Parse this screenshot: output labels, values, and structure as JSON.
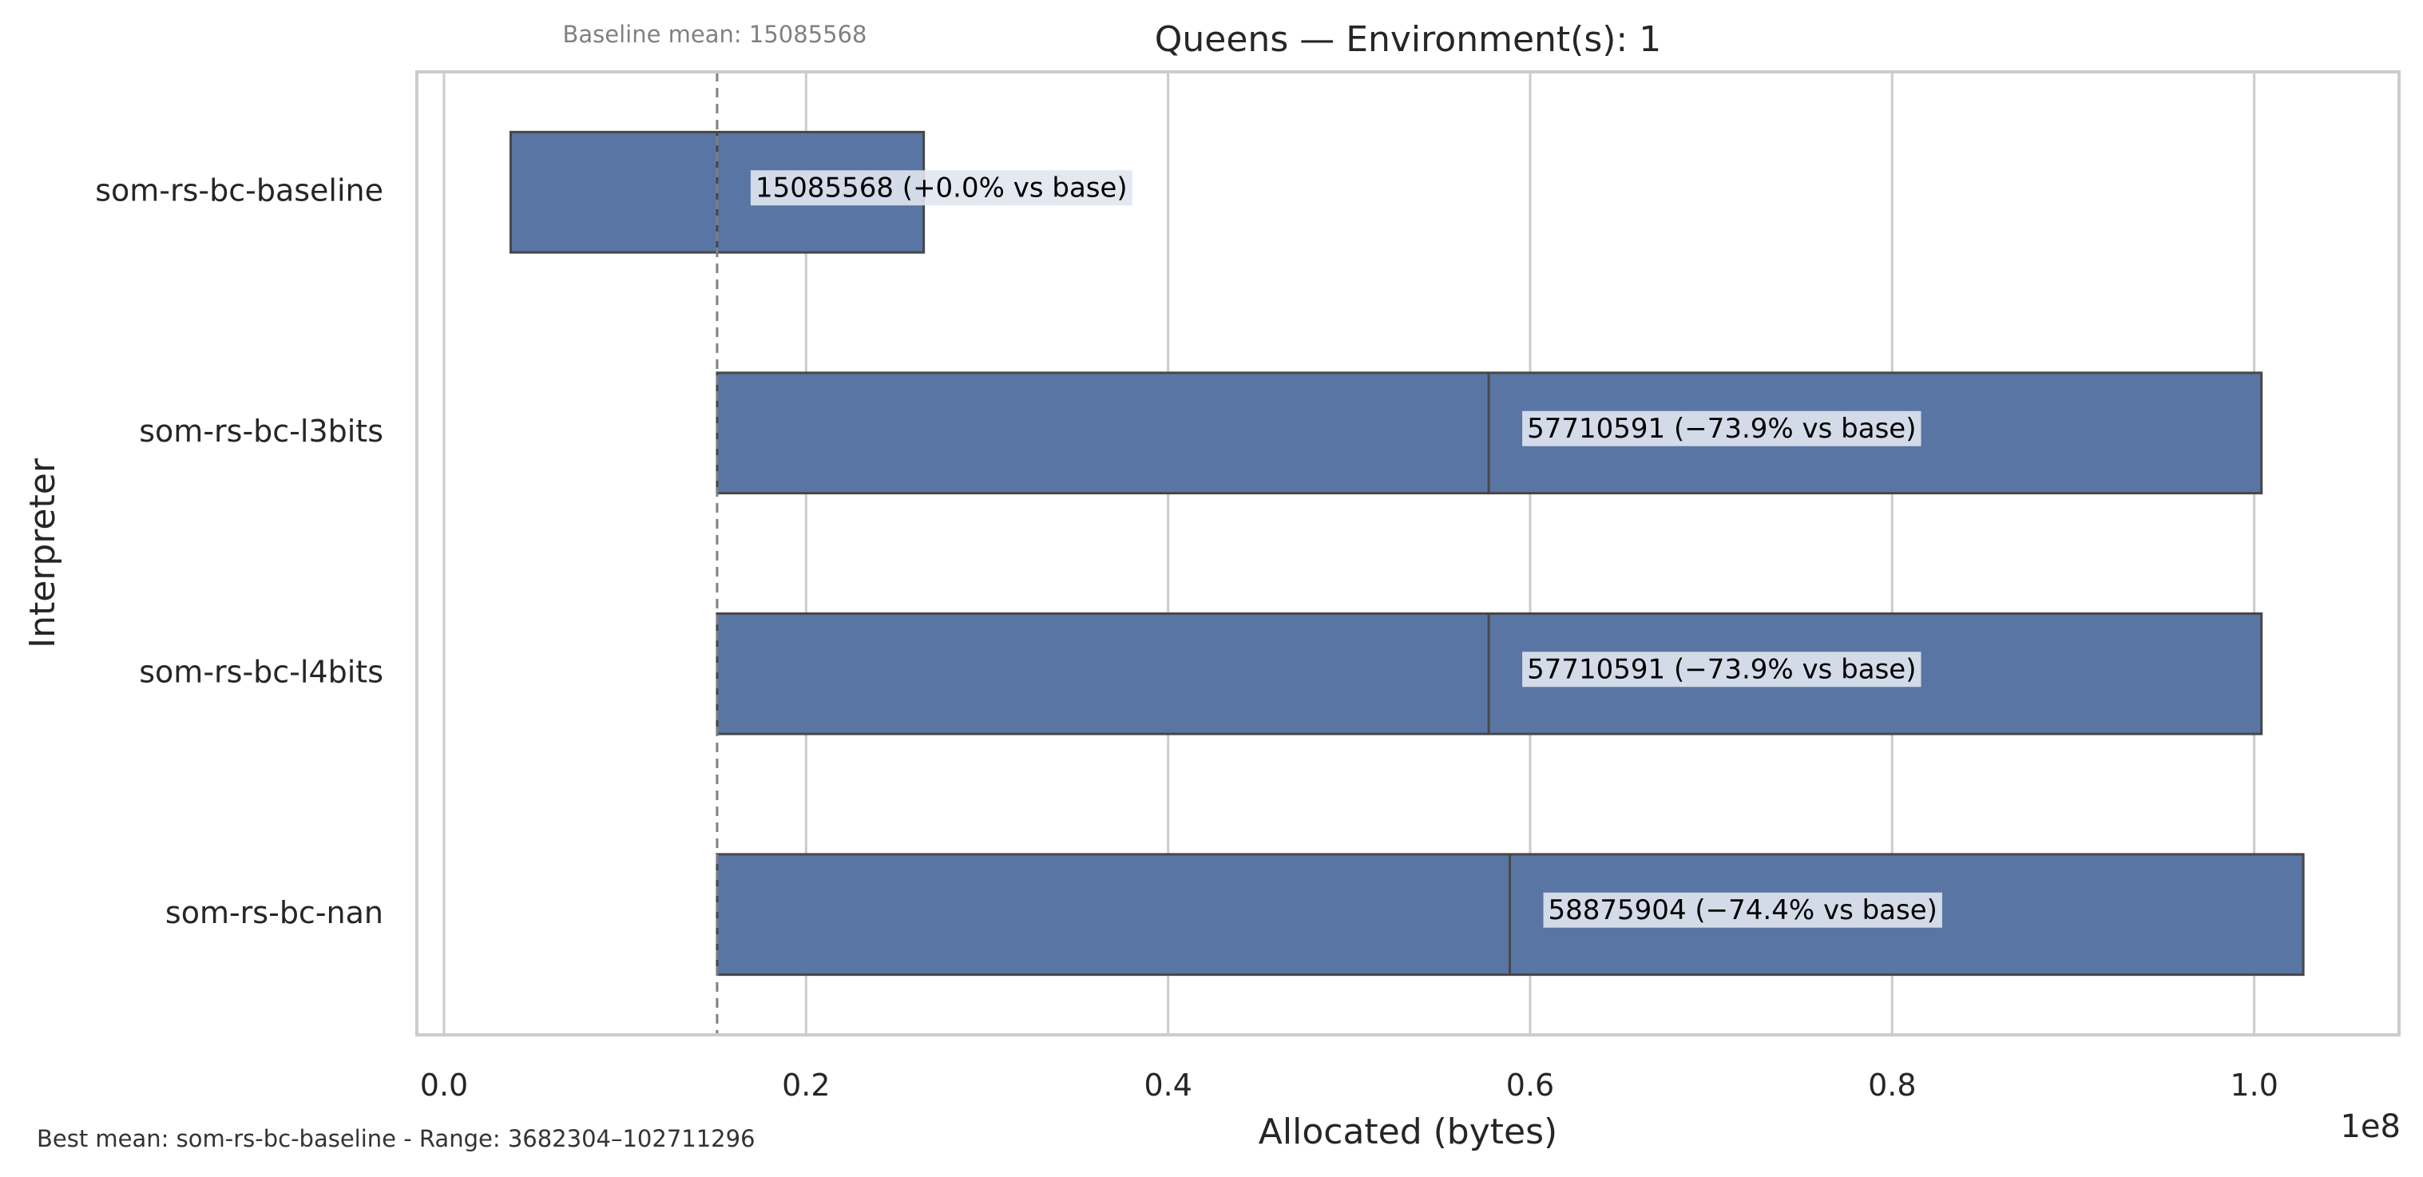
{
  "chart_data": {
    "type": "bar",
    "title": "Queens — Environment(s): 1",
    "xlabel": "Allocated (bytes)",
    "ylabel": "Interpreter",
    "x_offset_label": "1e8",
    "xlim": [
      -1500000,
      108000000
    ],
    "x_ticks": [
      0,
      20000000,
      40000000,
      60000000,
      80000000,
      100000000
    ],
    "x_tick_labels": [
      "0.0",
      "0.2",
      "0.4",
      "0.6",
      "0.8",
      "1.0"
    ],
    "categories": [
      "som-rs-bc-baseline",
      "som-rs-bc-l3bits",
      "som-rs-bc-l4bits",
      "som-rs-bc-nan"
    ],
    "boxes": [
      {
        "min": 3682304,
        "mean": 15085568,
        "max": 26500000
      },
      {
        "min": 15085568,
        "mean": 57710591,
        "max": 100400000
      },
      {
        "min": 15085568,
        "mean": 57710591,
        "max": 100400000
      },
      {
        "min": 15085568,
        "mean": 58875904,
        "max": 102711296
      }
    ],
    "bar_labels": [
      "15085568  (+0.0% vs base)",
      "57710591  (−73.9% vs base)",
      "57710591  (−73.9% vs base)",
      "58875904  (−74.4% vs base)"
    ],
    "baseline_mean": 15085568,
    "baseline_caption": "Baseline mean: 15085568",
    "footer": "Best mean: som-rs-bc-baseline - Range: 3682304–102711296",
    "grid": true,
    "colors": {
      "bar_fill": "#5975a4",
      "bar_edge": "#474747",
      "grid": "#cccccc",
      "baseline_line": "#808080",
      "label_bg": "#e0e6f0"
    }
  }
}
